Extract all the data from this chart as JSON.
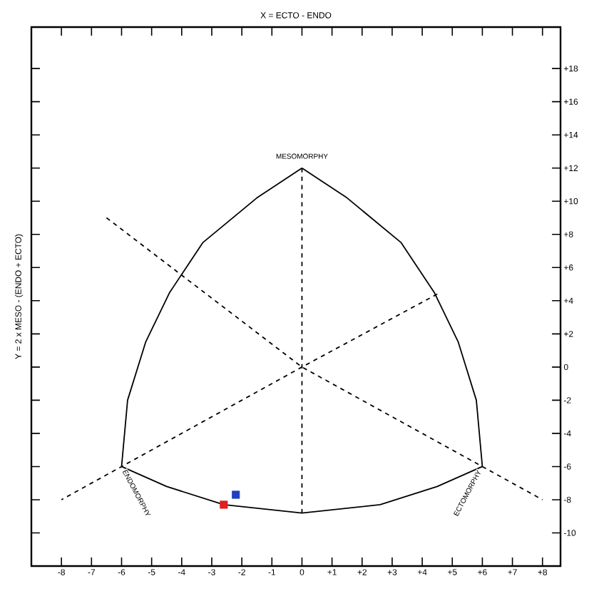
{
  "chart_data": {
    "type": "scatter",
    "title": "X = ECTO - ENDO",
    "ylabel": "Y = 2 x MESO - (ENDO + ECTO)",
    "xlim": [
      -9,
      8.6
    ],
    "ylim": [
      -12,
      20.5
    ],
    "xticks": [
      -8,
      -7,
      -6,
      -5,
      -4,
      -3,
      -2,
      -1,
      0,
      {
        "value": 1,
        "label": "+1"
      },
      {
        "value": 2,
        "label": "+2"
      },
      {
        "value": 3,
        "label": "+3"
      },
      {
        "value": 4,
        "label": "+4"
      },
      {
        "value": 5,
        "label": "+5"
      },
      {
        "value": 6,
        "label": "+6"
      },
      {
        "value": 7,
        "label": "+7"
      },
      {
        "value": 8,
        "label": "+8"
      }
    ],
    "yticks": [
      -10,
      -8,
      -6,
      -4,
      -2,
      0,
      {
        "value": 2,
        "label": "+2"
      },
      {
        "value": 4,
        "label": "+4"
      },
      {
        "value": 6,
        "label": "+6"
      },
      {
        "value": 8,
        "label": "+8"
      },
      {
        "value": 10,
        "label": "+10"
      },
      {
        "value": 12,
        "label": "+12"
      },
      {
        "value": 14,
        "label": "+14"
      },
      {
        "value": 16,
        "label": "+16"
      },
      {
        "value": 18,
        "label": "+18"
      }
    ],
    "series": [
      {
        "type": "line",
        "color": "#000000",
        "line_style": "solid",
        "x": [
          -6,
          -5.8,
          -5.2,
          -4.4,
          -3.3,
          -1.5,
          0
        ],
        "values": [
          -6,
          -2,
          1.5,
          4.5,
          7.5,
          10.2,
          12
        ]
      },
      {
        "type": "line",
        "color": "#000000",
        "line_style": "solid",
        "x": [
          0,
          1.5,
          3.3,
          4.4,
          5.2,
          5.8,
          6
        ],
        "values": [
          12,
          10.2,
          7.5,
          4.5,
          1.5,
          -2,
          -6
        ]
      },
      {
        "type": "line",
        "color": "#000000",
        "line_style": "solid",
        "x": [
          -6,
          -4.5,
          -2.6,
          0,
          2.6,
          4.5,
          6
        ],
        "values": [
          -6,
          -7.2,
          -8.3,
          -8.8,
          -8.3,
          -7.2,
          -6
        ]
      },
      {
        "type": "line",
        "color": "#000000",
        "line_style": "dashed",
        "x": [
          0,
          0
        ],
        "values": [
          12,
          -8.8
        ]
      },
      {
        "type": "line",
        "color": "#000000",
        "line_style": "dashed",
        "x": [
          -6.5,
          0,
          6,
          8
        ],
        "values": [
          9,
          0,
          -6,
          -8
        ]
      },
      {
        "type": "line",
        "color": "#000000",
        "line_style": "dashed",
        "x": [
          4.5,
          0,
          -6,
          -8
        ],
        "values": [
          4.4,
          0,
          -6,
          -8
        ]
      },
      {
        "color": "#e02020",
        "marker": "square",
        "x": [
          -2.6
        ],
        "values": [
          -8.3
        ]
      },
      {
        "color": "#2040c0",
        "marker": "square",
        "x": [
          -2.2
        ],
        "values": [
          -7.7
        ]
      }
    ],
    "annotations": [
      {
        "text": "MESOMORPHY",
        "x": 0,
        "y": 12
      },
      {
        "text": "ENDOMORPHY",
        "x": -6,
        "y": -6
      },
      {
        "text": "ECTOMORPHY",
        "x": 6,
        "y": -6
      }
    ]
  }
}
